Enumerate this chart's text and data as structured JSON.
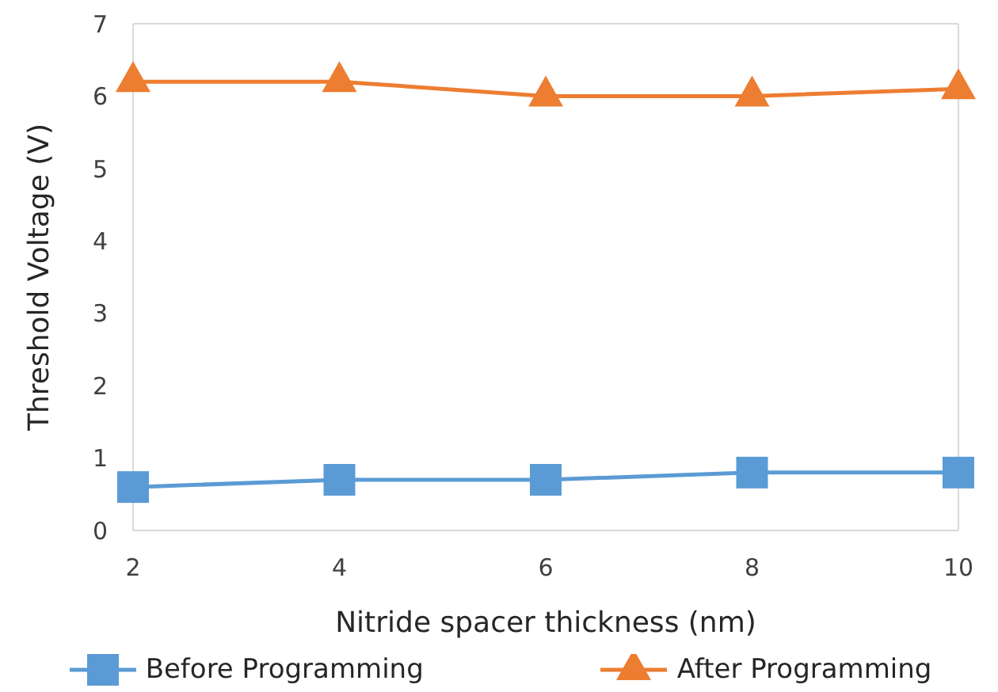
{
  "chart_data": {
    "type": "line",
    "xlabel": "Nitride spacer thickness (nm)",
    "ylabel": "Threshold Voltage (V)",
    "x": [
      2,
      4,
      6,
      8,
      10
    ],
    "xlim": [
      2,
      10
    ],
    "xticks": [
      2,
      4,
      6,
      8,
      10
    ],
    "ylim": [
      0,
      7
    ],
    "yticks": [
      0,
      1,
      2,
      3,
      4,
      5,
      6,
      7
    ],
    "grid": false,
    "legend": "bottom",
    "series": [
      {
        "name": "Before Programming",
        "color": "#5b9bd5",
        "marker": "square",
        "values": [
          0.6,
          0.7,
          0.7,
          0.8,
          0.8
        ]
      },
      {
        "name": "After Programming",
        "color": "#ed7d31",
        "marker": "triangle",
        "values": [
          6.2,
          6.2,
          6.0,
          6.0,
          6.1
        ]
      }
    ]
  }
}
